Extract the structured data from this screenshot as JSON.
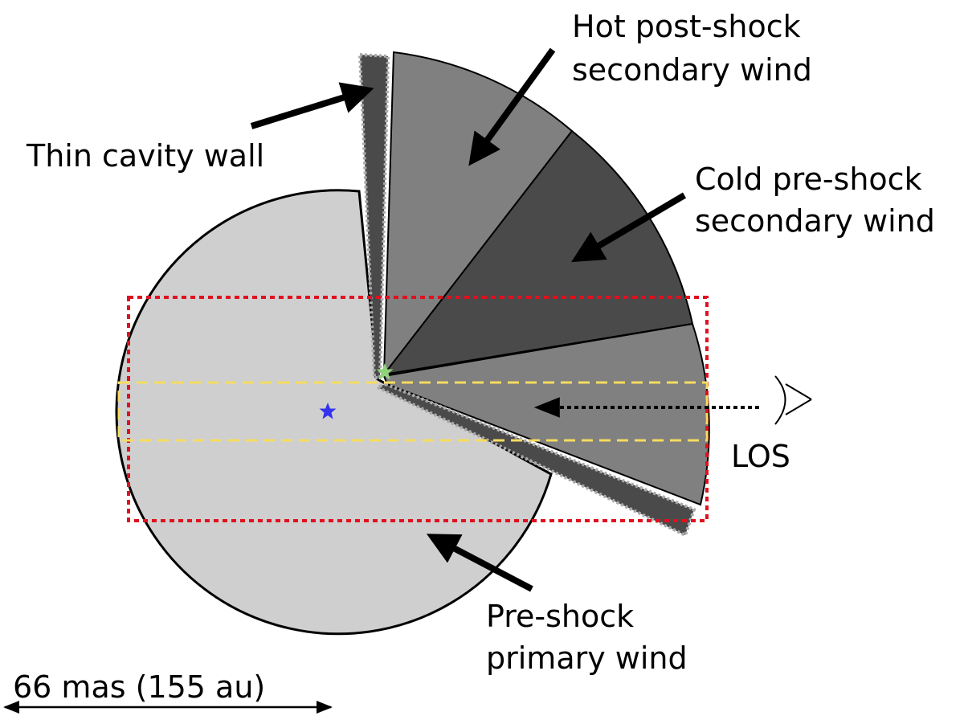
{
  "labels": [
    {
      "lines": [
        "Hot post-shock",
        "secondary wind"
      ]
    },
    {
      "lines": [
        "Thin cavity wall"
      ]
    },
    {
      "lines": [
        "Cold pre-shock",
        "secondary wind"
      ]
    },
    {
      "lines": [
        "LOS"
      ]
    },
    {
      "lines": [
        "Pre-shock",
        "primary wind"
      ]
    }
  ],
  "scale_bar": "66 mas (155 au)"
}
